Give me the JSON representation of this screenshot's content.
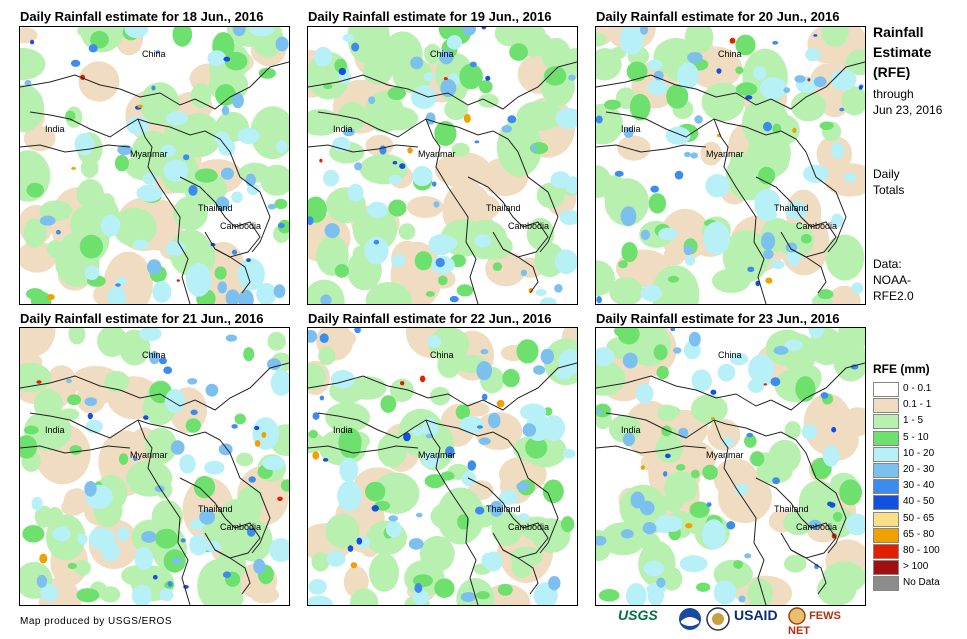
{
  "panels": [
    {
      "title": "Daily Rainfall estimate for 18 Jun., 2016",
      "seed": 18
    },
    {
      "title": "Daily Rainfall estimate for 19 Jun., 2016",
      "seed": 19
    },
    {
      "title": "Daily Rainfall estimate for 20 Jun., 2016",
      "seed": 20
    },
    {
      "title": "Daily Rainfall estimate for 21 Jun., 2016",
      "seed": 21
    },
    {
      "title": "Daily Rainfall estimate for 22 Jun., 2016",
      "seed": 22
    },
    {
      "title": "Daily Rainfall estimate for 23 Jun., 2016",
      "seed": 23
    }
  ],
  "map_labels": {
    "china": "China",
    "india": "India",
    "myanmar": "Myanmar",
    "thailand": "Thailand",
    "cambodia": "Cambodia"
  },
  "sidebar": {
    "title_line1": "Rainfall",
    "title_line2": "Estimate",
    "title_line3": "(RFE)",
    "through": "through",
    "date": "Jun 23, 2016",
    "daily": "Daily",
    "totals": "Totals",
    "data_label": "Data:",
    "source1": "NOAA-",
    "source2": "RFE2.0"
  },
  "legend": {
    "title": "RFE (mm)",
    "items": [
      {
        "label": "0 - 0.1",
        "color": "#ffffff"
      },
      {
        "label": "0.1 - 1",
        "color": "#f0dcc0"
      },
      {
        "label": "1 - 5",
        "color": "#b8f0b0"
      },
      {
        "label": "5 - 10",
        "color": "#6ee06e"
      },
      {
        "label": "10 - 20",
        "color": "#b8f0f8"
      },
      {
        "label": "20 - 30",
        "color": "#7cc0f0"
      },
      {
        "label": "30 - 40",
        "color": "#3c8cf0"
      },
      {
        "label": "40 - 50",
        "color": "#1450e0"
      },
      {
        "label": "50 - 65",
        "color": "#f8e088"
      },
      {
        "label": "65 - 80",
        "color": "#f0a000"
      },
      {
        "label": "80 - 100",
        "color": "#e02000"
      },
      {
        "label": "> 100",
        "color": "#a01010"
      },
      {
        "label": "No Data",
        "color": "#8c8c8c"
      }
    ]
  },
  "footer": {
    "credit": "Map produced by USGS/EROS",
    "logo_usgs": "USGS",
    "logo_usaid": "USAID",
    "logo_fews": "FEWS NET"
  }
}
